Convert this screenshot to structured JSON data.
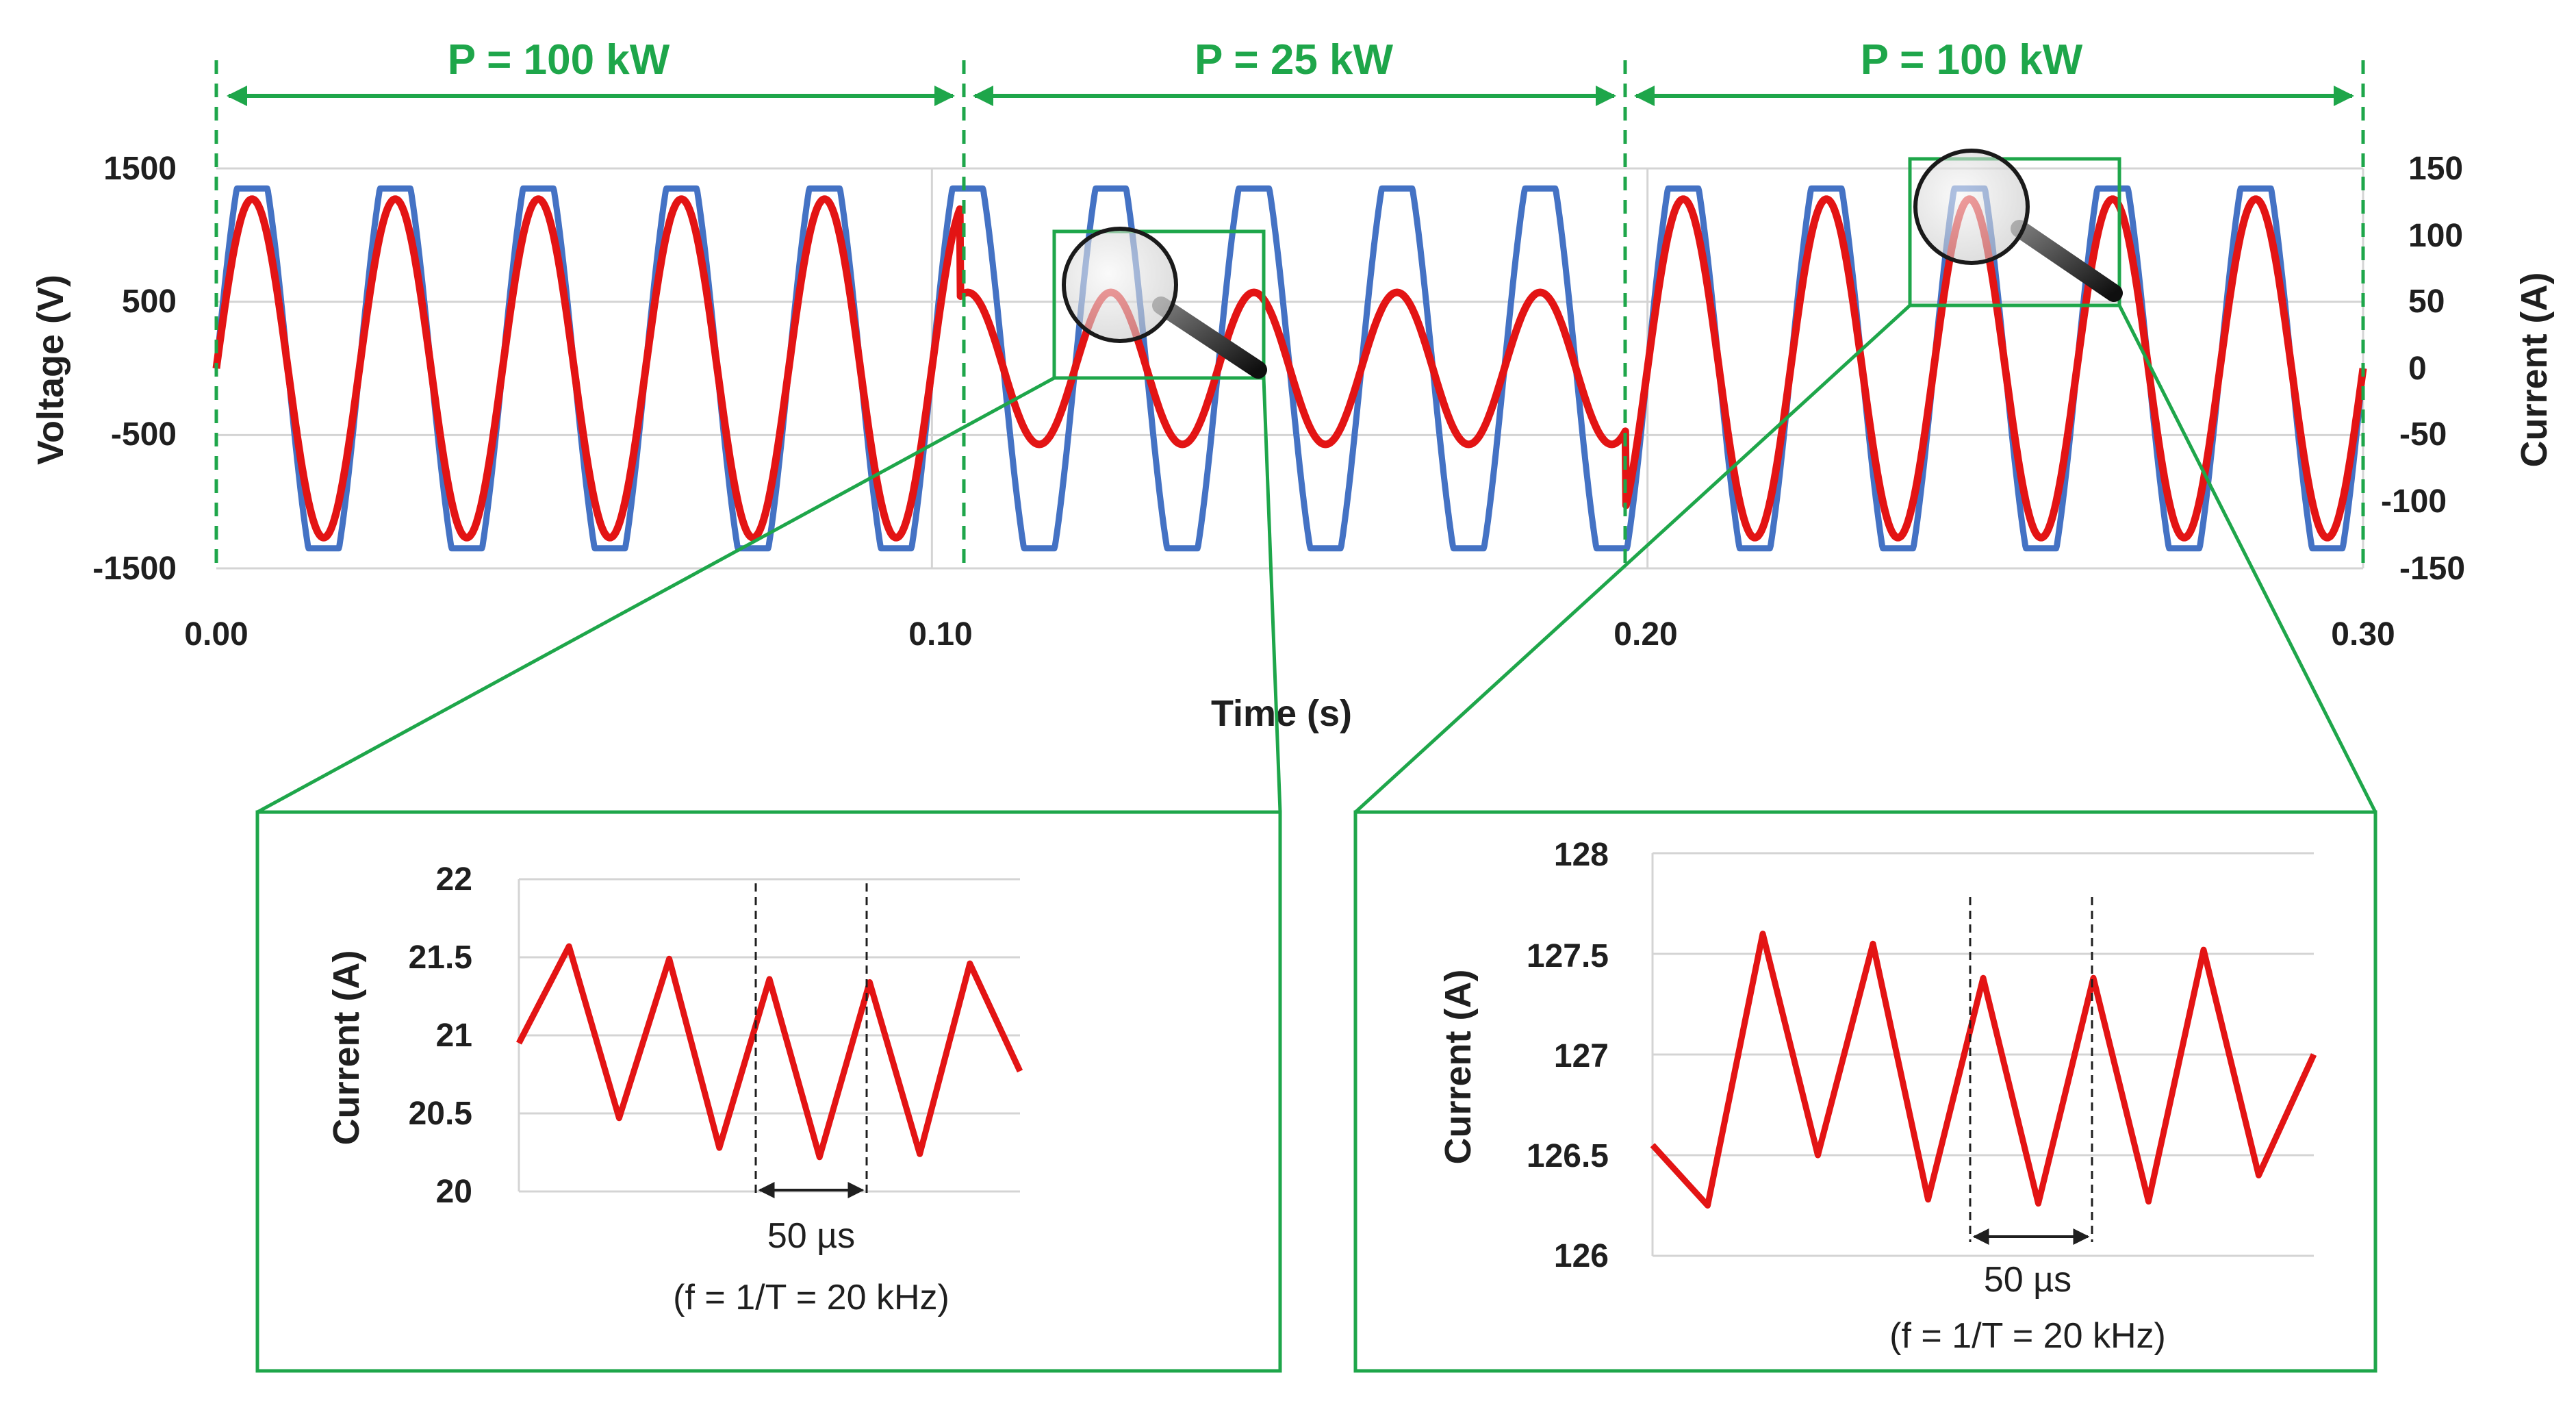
{
  "colors": {
    "voltage": "#4472c4",
    "current": "#e31414",
    "green": "#1ea64a",
    "grid": "#d4d4d4"
  },
  "icons": [
    "magnifier-icon",
    "magnifier-icon"
  ],
  "chart_data": [
    {
      "id": "main",
      "type": "line",
      "xlabel": "Time (s)",
      "ylabel_left": "Voltage (V)",
      "ylabel_right": "Current (A)",
      "x_ticks": [
        "0.00",
        "0.10",
        "0.20",
        "0.30"
      ],
      "y_left_ticks": [
        "1500",
        "500",
        "-500",
        "-1500"
      ],
      "y_right_ticks": [
        "150",
        "100",
        "50",
        "0",
        "-50",
        "-100",
        "-150"
      ],
      "xlim": [
        0,
        0.3
      ],
      "ylim_left": [
        -1500,
        1500
      ],
      "ylim_right": [
        -150,
        150
      ],
      "segments": [
        {
          "label": "P = 100 kW",
          "t_start": 0.0,
          "t_end": 0.104,
          "current_amplitude_A": 127
        },
        {
          "label": "P = 25 kW",
          "t_start": 0.104,
          "t_end": 0.197,
          "current_amplitude_A": 57
        },
        {
          "label": "P = 100 kW",
          "t_start": 0.197,
          "t_end": 0.3,
          "current_amplitude_A": 127
        }
      ],
      "series": [
        {
          "name": "Voltage",
          "axis": "left",
          "frequency_hz": 50,
          "amplitude_V": 1350,
          "shape": "clipped-sine"
        },
        {
          "name": "Current",
          "axis": "right",
          "frequency_hz": 50,
          "shape": "sine"
        }
      ]
    },
    {
      "id": "zoom-25kw",
      "type": "line",
      "ylabel": "Current (A)",
      "y_ticks": [
        "22",
        "21.5",
        "21",
        "20.5",
        "20"
      ],
      "ylim": [
        20,
        22
      ],
      "series": [
        {
          "name": "Current",
          "values": [
            20.95,
            21.57,
            20.47,
            21.49,
            20.28,
            21.36,
            20.22,
            21.34,
            20.24,
            21.46,
            20.77
          ]
        }
      ],
      "period_label": "50 µs",
      "frequency_label": "(f = 1/T = 20 kHz)"
    },
    {
      "id": "zoom-100kw",
      "type": "line",
      "ylabel": "Current (A)",
      "y_ticks": [
        "128",
        "127.5",
        "127",
        "126.5",
        "126"
      ],
      "ylim": [
        126,
        128
      ],
      "series": [
        {
          "name": "Current",
          "values": [
            126.55,
            126.25,
            127.6,
            126.5,
            127.55,
            126.28,
            127.38,
            126.26,
            127.38,
            126.27,
            127.52,
            126.4,
            127.0
          ]
        }
      ],
      "period_label": "50 µs",
      "frequency_label": "(f = 1/T = 20 kHz)"
    }
  ]
}
